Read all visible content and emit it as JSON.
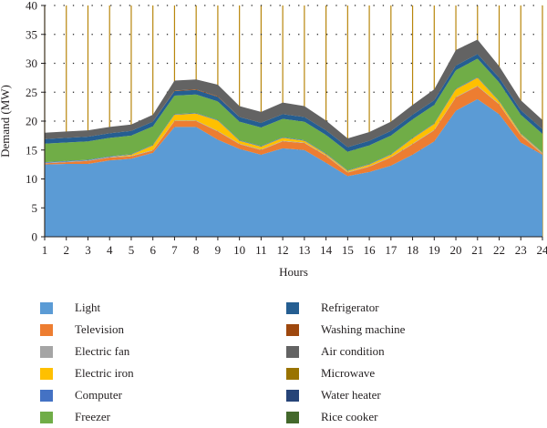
{
  "chart_data": {
    "type": "area",
    "stacked": true,
    "xlabel": "Hours",
    "ylabel": "Demand (MW)",
    "ylim": [
      0,
      40
    ],
    "yticks": [
      0,
      5,
      10,
      15,
      20,
      25,
      30,
      35,
      40
    ],
    "x": [
      1,
      2,
      3,
      4,
      5,
      6,
      7,
      8,
      9,
      10,
      11,
      12,
      13,
      14,
      15,
      16,
      17,
      18,
      19,
      20,
      21,
      22,
      23,
      24
    ],
    "legend_position": "bottom",
    "series": [
      {
        "name": "Light",
        "color": "#5b9bd5",
        "values": [
          12.5,
          12.6,
          12.6,
          13.2,
          13.5,
          14.5,
          19,
          19,
          16.8,
          15.2,
          14.2,
          15.3,
          15,
          12.8,
          10.5,
          11.2,
          12.3,
          14.2,
          16.5,
          21.8,
          23.8,
          21.2,
          16.3,
          14.2
        ]
      },
      {
        "name": "Television",
        "color": "#ed7d31",
        "values": [
          0.2,
          0.3,
          0.5,
          0.5,
          0.4,
          0.4,
          1,
          1,
          1.4,
          0.8,
          0.8,
          1.2,
          1.2,
          1.2,
          0.6,
          0.9,
          1.4,
          1.8,
          1.9,
          2.3,
          2.2,
          1.7,
          1.2,
          0.1
        ]
      },
      {
        "name": "Electric fan",
        "color": "#a5a5a5",
        "values": [
          0.1,
          0.1,
          0.1,
          0.1,
          0.1,
          0.1,
          0.1,
          0.1,
          0.1,
          0.1,
          0.1,
          0.1,
          0.1,
          0.1,
          0.1,
          0.1,
          0.1,
          0.1,
          0.1,
          0.1,
          0.1,
          0.1,
          0.1,
          0.1
        ]
      },
      {
        "name": "Electric iron",
        "color": "#ffc000",
        "values": [
          0,
          0,
          0,
          0,
          0.2,
          0.8,
          1,
          1.2,
          1.8,
          0.5,
          0.5,
          0.5,
          0.3,
          0.2,
          0.2,
          0.3,
          0.4,
          0.9,
          1,
          1.3,
          1.4,
          0.4,
          0.2,
          0.1
        ]
      },
      {
        "name": "Computer",
        "color": "#4472c4",
        "values": [
          0.1,
          0.1,
          0.1,
          0.1,
          0.1,
          0.1,
          0.1,
          0.1,
          0.1,
          0.1,
          0.1,
          0.1,
          0.1,
          0.1,
          0.1,
          0.1,
          0.1,
          0.1,
          0.1,
          0.1,
          0.1,
          0.1,
          0.1,
          0.1
        ]
      },
      {
        "name": "Freezer",
        "color": "#70ad47",
        "values": [
          3.2,
          3.2,
          3.2,
          3.2,
          3.2,
          3.2,
          3.2,
          3.2,
          3.2,
          3.2,
          3.2,
          3.2,
          3.2,
          3.2,
          3.2,
          3.2,
          3.2,
          3.2,
          3.2,
          3.2,
          3.2,
          3.2,
          3.2,
          3.2
        ]
      },
      {
        "name": "Refrigerator",
        "color": "#255e91",
        "values": [
          0.8,
          0.8,
          0.8,
          0.8,
          0.8,
          0.8,
          0.8,
          0.8,
          0.8,
          0.8,
          0.8,
          0.8,
          0.8,
          0.8,
          0.8,
          0.8,
          0.8,
          0.8,
          0.8,
          0.8,
          0.8,
          0.8,
          0.8,
          0.8
        ]
      },
      {
        "name": "Washing machine",
        "color": "#9e480e",
        "values": [
          0,
          0,
          0,
          0,
          0,
          0,
          0.1,
          0.1,
          0.1,
          0,
          0,
          0,
          0,
          0,
          0,
          0,
          0,
          0,
          0,
          0,
          0,
          0,
          0,
          0
        ]
      },
      {
        "name": "Air condition",
        "color": "#636363",
        "values": [
          1.1,
          1.1,
          1.1,
          1.1,
          1.1,
          1.2,
          1.7,
          1.7,
          2,
          1.9,
          1.9,
          2,
          1.9,
          1.7,
          1.5,
          1.5,
          1.6,
          1.7,
          1.9,
          2.7,
          2.5,
          2,
          1.7,
          1.6
        ]
      },
      {
        "name": "Microwave",
        "color": "#997300",
        "values": [
          0,
          0,
          0,
          0,
          0,
          0,
          0,
          0,
          0,
          0,
          0,
          0,
          0,
          0,
          0,
          0,
          0,
          0,
          0,
          0,
          0,
          0,
          0,
          0
        ]
      },
      {
        "name": "Water heater",
        "color": "#264478",
        "values": [
          0,
          0,
          0,
          0,
          0,
          0,
          0,
          0,
          0,
          0,
          0,
          0,
          0,
          0,
          0,
          0,
          0,
          0,
          0,
          0,
          0,
          0,
          0,
          0
        ]
      },
      {
        "name": "Rice cooker",
        "color": "#43682b",
        "values": [
          0,
          0,
          0,
          0,
          0,
          0,
          0,
          0,
          0,
          0,
          0,
          0,
          0,
          0,
          0,
          0,
          0,
          0,
          0,
          0,
          0,
          0,
          0,
          0
        ]
      }
    ]
  }
}
